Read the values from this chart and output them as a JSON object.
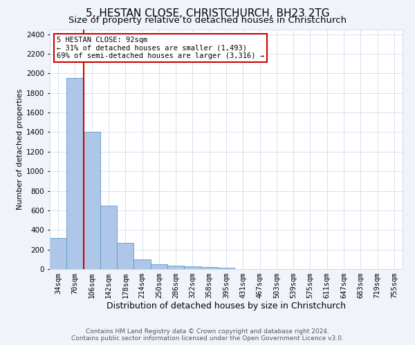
{
  "title": "5, HESTAN CLOSE, CHRISTCHURCH, BH23 2TG",
  "subtitle": "Size of property relative to detached houses in Christchurch",
  "xlabel": "Distribution of detached houses by size in Christchurch",
  "ylabel": "Number of detached properties",
  "categories": [
    "34sqm",
    "70sqm",
    "106sqm",
    "142sqm",
    "178sqm",
    "214sqm",
    "250sqm",
    "286sqm",
    "322sqm",
    "358sqm",
    "395sqm",
    "431sqm",
    "467sqm",
    "503sqm",
    "539sqm",
    "575sqm",
    "611sqm",
    "647sqm",
    "683sqm",
    "719sqm",
    "755sqm"
  ],
  "values": [
    320,
    1950,
    1400,
    650,
    270,
    100,
    50,
    35,
    25,
    20,
    15,
    0,
    0,
    0,
    0,
    0,
    0,
    0,
    0,
    0,
    0
  ],
  "bar_color": "#aec6e8",
  "bar_edge_color": "#5a9ac8",
  "vline_color": "#cc0000",
  "annotation_text": "5 HESTAN CLOSE: 92sqm\n← 31% of detached houses are smaller (1,493)\n69% of semi-detached houses are larger (3,316) →",
  "annotation_box_color": "#ffffff",
  "annotation_box_edge": "#cc0000",
  "ylim": [
    0,
    2450
  ],
  "yticks": [
    0,
    200,
    400,
    600,
    800,
    1000,
    1200,
    1400,
    1600,
    1800,
    2000,
    2200,
    2400
  ],
  "footer1": "Contains HM Land Registry data © Crown copyright and database right 2024.",
  "footer2": "Contains public sector information licensed under the Open Government Licence v3.0.",
  "bg_color": "#f0f4fa",
  "plot_bg_color": "#ffffff",
  "title_fontsize": 11,
  "subtitle_fontsize": 9.5,
  "xlabel_fontsize": 9,
  "ylabel_fontsize": 8,
  "tick_fontsize": 7.5,
  "footer_fontsize": 6.5,
  "annotation_fontsize": 7.5
}
